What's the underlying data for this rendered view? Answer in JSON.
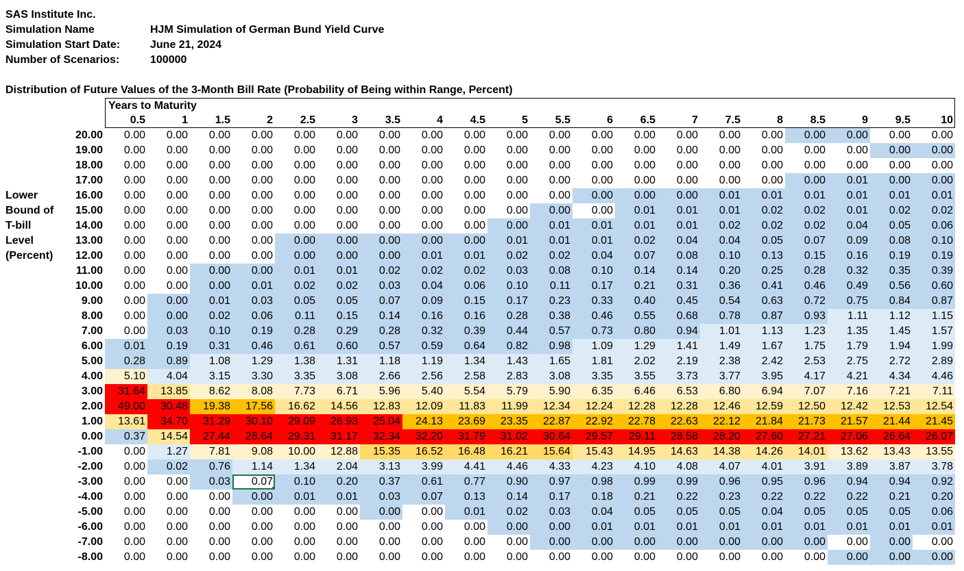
{
  "info": {
    "company": "SAS Institute Inc.",
    "sim_name_label": "Simulation Name",
    "sim_name": "HJM Simulation of German Bund Yield Curve",
    "start_label": "Simulation Start Date:",
    "start_date": "June 21, 2024",
    "scen_label": "Number of Scenarios:",
    "scenarios": "100000"
  },
  "subtitle": "Distribution of Future Values of the 3-Month Bill Rate (Probability of Being within Range, Percent)",
  "header_label": "Years to Maturity",
  "row_axis_title": [
    "Lower",
    "Bound of",
    "T-bill",
    "Level",
    "(Percent)"
  ],
  "columns": [
    "0.5",
    "1",
    "1.5",
    "2",
    "2.5",
    "3",
    "3.5",
    "4",
    "4.5",
    "5",
    "5.5",
    "6",
    "6.5",
    "7",
    "7.5",
    "8",
    "8.5",
    "9",
    "9.5",
    "10"
  ],
  "rows": [
    {
      "label": "20.00",
      "values": [
        "0.00",
        "0.00",
        "0.00",
        "0.00",
        "0.00",
        "0.00",
        "0.00",
        "0.00",
        "0.00",
        "0.00",
        "0.00",
        "0.00",
        "0.00",
        "0.00",
        "0.00",
        "0.00",
        "0.00",
        "0.00",
        "0.00",
        "0.00"
      ],
      "shade_from": 16,
      "shade_to": 17
    },
    {
      "label": "19.00",
      "values": [
        "0.00",
        "0.00",
        "0.00",
        "0.00",
        "0.00",
        "0.00",
        "0.00",
        "0.00",
        "0.00",
        "0.00",
        "0.00",
        "0.00",
        "0.00",
        "0.00",
        "0.00",
        "0.00",
        "0.00",
        "0.00",
        "0.00",
        "0.00"
      ],
      "shade_from": 18,
      "shade_to": 19
    },
    {
      "label": "18.00",
      "values": [
        "0.00",
        "0.00",
        "0.00",
        "0.00",
        "0.00",
        "0.00",
        "0.00",
        "0.00",
        "0.00",
        "0.00",
        "0.00",
        "0.00",
        "0.00",
        "0.00",
        "0.00",
        "0.00",
        "0.00",
        "0.00",
        "0.00",
        "0.00"
      ],
      "shade_from": -1,
      "shade_to": -1
    },
    {
      "label": "17.00",
      "values": [
        "0.00",
        "0.00",
        "0.00",
        "0.00",
        "0.00",
        "0.00",
        "0.00",
        "0.00",
        "0.00",
        "0.00",
        "0.00",
        "0.00",
        "0.00",
        "0.00",
        "0.00",
        "0.00",
        "0.00",
        "0.01",
        "0.00",
        "0.00"
      ],
      "shade_from": 16,
      "shade_to": 19
    },
    {
      "label": "16.00",
      "values": [
        "0.00",
        "0.00",
        "0.00",
        "0.00",
        "0.00",
        "0.00",
        "0.00",
        "0.00",
        "0.00",
        "0.00",
        "0.00",
        "0.00",
        "0.00",
        "0.00",
        "0.01",
        "0.01",
        "0.01",
        "0.01",
        "0.01",
        "0.01"
      ],
      "shade_from": 11,
      "shade_to": 19
    },
    {
      "label": "15.00",
      "values": [
        "0.00",
        "0.00",
        "0.00",
        "0.00",
        "0.00",
        "0.00",
        "0.00",
        "0.00",
        "0.00",
        "0.00",
        "0.00",
        "0.00",
        "0.01",
        "0.01",
        "0.01",
        "0.02",
        "0.02",
        "0.01",
        "0.02",
        "0.02"
      ],
      "shade_from": 10,
      "shade_to": 19,
      "white_col": 11
    },
    {
      "label": "14.00",
      "values": [
        "0.00",
        "0.00",
        "0.00",
        "0.00",
        "0.00",
        "0.00",
        "0.00",
        "0.00",
        "0.00",
        "0.00",
        "0.01",
        "0.01",
        "0.01",
        "0.01",
        "0.02",
        "0.02",
        "0.02",
        "0.04",
        "0.05",
        "0.06"
      ],
      "shade_from": 9,
      "shade_to": 19
    },
    {
      "label": "13.00",
      "values": [
        "0.00",
        "0.00",
        "0.00",
        "0.00",
        "0.00",
        "0.00",
        "0.00",
        "0.00",
        "0.00",
        "0.01",
        "0.01",
        "0.01",
        "0.02",
        "0.04",
        "0.04",
        "0.05",
        "0.07",
        "0.09",
        "0.08",
        "0.10"
      ],
      "shade_from": 4,
      "shade_to": 19
    },
    {
      "label": "12.00",
      "values": [
        "0.00",
        "0.00",
        "0.00",
        "0.00",
        "0.00",
        "0.00",
        "0.00",
        "0.01",
        "0.01",
        "0.02",
        "0.02",
        "0.04",
        "0.07",
        "0.08",
        "0.10",
        "0.13",
        "0.15",
        "0.16",
        "0.19",
        "0.19"
      ],
      "shade_from": 4,
      "shade_to": 19
    },
    {
      "label": "11.00",
      "values": [
        "0.00",
        "0.00",
        "0.00",
        "0.00",
        "0.01",
        "0.01",
        "0.02",
        "0.02",
        "0.02",
        "0.03",
        "0.08",
        "0.10",
        "0.14",
        "0.14",
        "0.20",
        "0.25",
        "0.28",
        "0.32",
        "0.35",
        "0.39"
      ],
      "shade_from": 2,
      "shade_to": 19
    },
    {
      "label": "10.00",
      "values": [
        "0.00",
        "0.00",
        "0.00",
        "0.01",
        "0.02",
        "0.02",
        "0.03",
        "0.04",
        "0.06",
        "0.10",
        "0.11",
        "0.17",
        "0.21",
        "0.31",
        "0.36",
        "0.41",
        "0.46",
        "0.49",
        "0.56",
        "0.60"
      ],
      "shade_from": 2,
      "shade_to": 19
    },
    {
      "label": "9.00",
      "values": [
        "0.00",
        "0.00",
        "0.01",
        "0.03",
        "0.05",
        "0.05",
        "0.07",
        "0.09",
        "0.15",
        "0.17",
        "0.23",
        "0.33",
        "0.40",
        "0.45",
        "0.54",
        "0.63",
        "0.72",
        "0.75",
        "0.84",
        "0.87"
      ],
      "shade_from": 1,
      "shade_to": 19
    },
    {
      "label": "8.00",
      "values": [
        "0.00",
        "0.00",
        "0.02",
        "0.06",
        "0.11",
        "0.15",
        "0.14",
        "0.16",
        "0.16",
        "0.28",
        "0.38",
        "0.46",
        "0.55",
        "0.68",
        "0.78",
        "0.87",
        "0.93",
        "1.11",
        "1.12",
        "1.15"
      ],
      "shade_from": 1,
      "shade_to": 16,
      "light_from": 17
    },
    {
      "label": "7.00",
      "values": [
        "0.00",
        "0.03",
        "0.10",
        "0.19",
        "0.28",
        "0.29",
        "0.28",
        "0.32",
        "0.39",
        "0.44",
        "0.57",
        "0.73",
        "0.80",
        "0.94",
        "1.01",
        "1.13",
        "1.23",
        "1.35",
        "1.45",
        "1.57"
      ],
      "shade_from": 1,
      "shade_to": 13,
      "light_from": 14
    },
    {
      "label": "6.00",
      "values": [
        "0.01",
        "0.19",
        "0.31",
        "0.46",
        "0.61",
        "0.60",
        "0.57",
        "0.59",
        "0.64",
        "0.82",
        "0.98",
        "1.09",
        "1.29",
        "1.41",
        "1.49",
        "1.67",
        "1.75",
        "1.79",
        "1.94",
        "1.99"
      ],
      "shade_from": 0,
      "shade_to": 10,
      "light_from": 11
    },
    {
      "label": "5.00",
      "values": [
        "0.28",
        "0.89",
        "1.08",
        "1.29",
        "1.38",
        "1.31",
        "1.18",
        "1.19",
        "1.34",
        "1.43",
        "1.65",
        "1.81",
        "2.02",
        "2.19",
        "2.38",
        "2.42",
        "2.53",
        "2.75",
        "2.72",
        "2.89"
      ],
      "shade_from": 0,
      "shade_to": 1,
      "light_from": 2
    },
    {
      "label": "4.00",
      "values": [
        "5.10",
        "4.04",
        "3.15",
        "3.30",
        "3.35",
        "3.08",
        "2.66",
        "2.56",
        "2.58",
        "2.83",
        "3.08",
        "3.35",
        "3.55",
        "3.73",
        "3.77",
        "3.95",
        "4.17",
        "4.21",
        "4.34",
        "4.46"
      ],
      "heat": [
        "y1",
        "l",
        "l",
        "l",
        "l",
        "l",
        "l",
        "l",
        "l",
        "l",
        "l",
        "l",
        "l",
        "l",
        "l",
        "l",
        "l",
        "l",
        "l",
        "l"
      ]
    },
    {
      "label": "3.00",
      "values": [
        "31.64",
        "13.85",
        "8.62",
        "8.08",
        "7.73",
        "6.71",
        "5.96",
        "5.40",
        "5.54",
        "5.79",
        "5.90",
        "6.35",
        "6.46",
        "6.53",
        "6.80",
        "6.94",
        "7.07",
        "7.16",
        "7.21",
        "7.11"
      ],
      "heat": [
        "r",
        "y2",
        "y1",
        "y1",
        "y1",
        "y1",
        "y1",
        "y1",
        "y1",
        "y1",
        "y1",
        "y1",
        "y1",
        "y1",
        "y1",
        "y1",
        "y1",
        "y1",
        "y1",
        "y1"
      ]
    },
    {
      "label": "2.00",
      "values": [
        "49.00",
        "30.48",
        "19.38",
        "17.56",
        "16.62",
        "14.56",
        "12.83",
        "12.09",
        "11.83",
        "11.99",
        "12.34",
        "12.24",
        "12.28",
        "12.28",
        "12.46",
        "12.59",
        "12.50",
        "12.42",
        "12.53",
        "12.54"
      ],
      "heat": [
        "r",
        "r",
        "o",
        "o",
        "y2",
        "y2",
        "y2",
        "y2",
        "y2",
        "y2",
        "y2",
        "y2",
        "y2",
        "y2",
        "y2",
        "y2",
        "y2",
        "y2",
        "y2",
        "y2"
      ]
    },
    {
      "label": "1.00",
      "values": [
        "13.61",
        "34.70",
        "31.29",
        "30.10",
        "29.09",
        "26.93",
        "25.04",
        "24.13",
        "23.69",
        "23.35",
        "22.87",
        "22.92",
        "22.78",
        "22.63",
        "22.12",
        "21.84",
        "21.73",
        "21.57",
        "21.44",
        "21.45"
      ],
      "heat": [
        "y2",
        "r",
        "r",
        "r",
        "r",
        "r",
        "r",
        "o",
        "o",
        "o",
        "o",
        "o",
        "o",
        "o",
        "o",
        "o",
        "o",
        "o",
        "o",
        "o"
      ]
    },
    {
      "label": "0.00",
      "values": [
        "0.37",
        "14.54",
        "27.44",
        "28.64",
        "29.31",
        "31.17",
        "32.34",
        "32.20",
        "31.79",
        "31.02",
        "30.64",
        "29.57",
        "29.11",
        "28.58",
        "28.20",
        "27.60",
        "27.21",
        "27.06",
        "26.64",
        "26.07"
      ],
      "heat": [
        "b",
        "y2",
        "r",
        "r",
        "r",
        "r",
        "r",
        "r",
        "r",
        "r",
        "r",
        "r",
        "r",
        "r",
        "r",
        "r",
        "r",
        "r",
        "r",
        "r"
      ]
    },
    {
      "label": "-1.00",
      "values": [
        "0.00",
        "1.27",
        "7.81",
        "9.08",
        "10.00",
        "12.88",
        "15.35",
        "16.52",
        "16.48",
        "16.21",
        "15.64",
        "15.43",
        "14.95",
        "14.63",
        "14.38",
        "14.26",
        "14.01",
        "13.62",
        "13.43",
        "13.55"
      ],
      "heat": [
        "w",
        "l",
        "y1",
        "y1",
        "y1",
        "y1",
        "o2",
        "o2",
        "o2",
        "o2",
        "o2",
        "y2",
        "y2",
        "y2",
        "y2",
        "y2",
        "y2",
        "y1",
        "y1",
        "y1"
      ]
    },
    {
      "label": "-2.00",
      "values": [
        "0.00",
        "0.02",
        "0.76",
        "1.14",
        "1.34",
        "2.04",
        "3.13",
        "3.99",
        "4.41",
        "4.46",
        "4.33",
        "4.23",
        "4.10",
        "4.08",
        "4.07",
        "4.01",
        "3.91",
        "3.89",
        "3.87",
        "3.78"
      ],
      "heat": [
        "w",
        "b",
        "b",
        "l",
        "l",
        "l",
        "l",
        "l",
        "l",
        "l",
        "l",
        "l",
        "l",
        "l",
        "l",
        "l",
        "l",
        "l",
        "l",
        "l"
      ]
    },
    {
      "label": "-3.00",
      "values": [
        "0.00",
        "0.00",
        "0.03",
        "0.07",
        "0.10",
        "0.20",
        "0.37",
        "0.61",
        "0.77",
        "0.90",
        "0.97",
        "0.98",
        "0.99",
        "0.99",
        "0.96",
        "0.95",
        "0.96",
        "0.94",
        "0.94",
        "0.92"
      ],
      "heat": [
        "w",
        "w",
        "b",
        "w",
        "b",
        "b",
        "b",
        "b",
        "b",
        "b",
        "b",
        "b",
        "b",
        "b",
        "b",
        "b",
        "b",
        "b",
        "b",
        "b"
      ]
    },
    {
      "label": "-4.00",
      "values": [
        "0.00",
        "0.00",
        "0.00",
        "0.00",
        "0.01",
        "0.01",
        "0.03",
        "0.07",
        "0.13",
        "0.14",
        "0.17",
        "0.18",
        "0.21",
        "0.22",
        "0.23",
        "0.22",
        "0.22",
        "0.22",
        "0.21",
        "0.20"
      ],
      "heat": [
        "w",
        "w",
        "w",
        "b",
        "b",
        "b",
        "b",
        "b",
        "b",
        "b",
        "b",
        "b",
        "b",
        "b",
        "b",
        "b",
        "b",
        "b",
        "b",
        "b"
      ]
    },
    {
      "label": "-5.00",
      "values": [
        "0.00",
        "0.00",
        "0.00",
        "0.00",
        "0.00",
        "0.00",
        "0.00",
        "0.00",
        "0.01",
        "0.02",
        "0.03",
        "0.04",
        "0.05",
        "0.05",
        "0.05",
        "0.04",
        "0.05",
        "0.05",
        "0.05",
        "0.06"
      ],
      "heat": [
        "w",
        "w",
        "w",
        "w",
        "w",
        "w",
        "b",
        "w",
        "b",
        "b",
        "b",
        "b",
        "b",
        "b",
        "b",
        "b",
        "b",
        "b",
        "b",
        "b"
      ]
    },
    {
      "label": "-6.00",
      "values": [
        "0.00",
        "0.00",
        "0.00",
        "0.00",
        "0.00",
        "0.00",
        "0.00",
        "0.00",
        "0.00",
        "0.00",
        "0.00",
        "0.01",
        "0.01",
        "0.01",
        "0.01",
        "0.01",
        "0.01",
        "0.01",
        "0.01",
        "0.01"
      ],
      "heat": [
        "w",
        "w",
        "w",
        "w",
        "w",
        "w",
        "w",
        "w",
        "w",
        "b",
        "b",
        "b",
        "b",
        "b",
        "b",
        "b",
        "b",
        "b",
        "b",
        "b"
      ]
    },
    {
      "label": "-7.00",
      "values": [
        "0.00",
        "0.00",
        "0.00",
        "0.00",
        "0.00",
        "0.00",
        "0.00",
        "0.00",
        "0.00",
        "0.00",
        "0.00",
        "0.00",
        "0.00",
        "0.00",
        "0.00",
        "0.00",
        "0.00",
        "0.00",
        "0.00",
        "0.00"
      ],
      "heat": [
        "w",
        "w",
        "w",
        "w",
        "w",
        "w",
        "w",
        "w",
        "w",
        "w",
        "b",
        "b",
        "b",
        "b",
        "b",
        "b",
        "b",
        "w",
        "b",
        "w"
      ]
    },
    {
      "label": "-8.00",
      "values": [
        "0.00",
        "0.00",
        "0.00",
        "0.00",
        "0.00",
        "0.00",
        "0.00",
        "0.00",
        "0.00",
        "0.00",
        "0.00",
        "0.00",
        "0.00",
        "0.00",
        "0.00",
        "0.00",
        "0.00",
        "0.00",
        "0.00",
        "0.00"
      ],
      "heat": [
        "w",
        "w",
        "w",
        "w",
        "w",
        "w",
        "w",
        "w",
        "w",
        "w",
        "w",
        "w",
        "w",
        "w",
        "w",
        "w",
        "w",
        "b",
        "b",
        "b"
      ]
    }
  ],
  "colors": {
    "w": "#ffffff",
    "b": "#bdd7ee",
    "l": "#ddebf7",
    "y1": "#fff2cc",
    "y2": "#ffe699",
    "o": "#ffc000",
    "o2": "#ffd966",
    "r": "#ff0000"
  },
  "selected_cell": {
    "row": 23,
    "col": 3
  }
}
